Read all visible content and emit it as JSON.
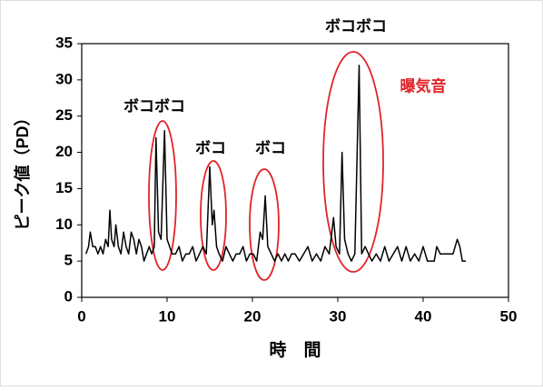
{
  "chart_data": {
    "type": "line",
    "xlabel": "時　間",
    "ylabel": "ピーク値（PD）",
    "annotations": [
      {
        "text": "ボコボコ",
        "color": "#000000"
      },
      {
        "text": "ボコ",
        "color": "#000000"
      },
      {
        "text": "ボコ",
        "color": "#000000"
      },
      {
        "text": "ボコボコ",
        "color": "#000000"
      },
      {
        "text": "曝気音",
        "color": "#e0242a"
      }
    ],
    "x": [
      0.5,
      0.8,
      1,
      1.3,
      1.6,
      1.9,
      2.2,
      2.5,
      2.8,
      3.1,
      3.3,
      3.5,
      3.8,
      4,
      4.3,
      4.6,
      4.9,
      5.2,
      5.5,
      5.8,
      6.1,
      6.4,
      6.7,
      7,
      7.3,
      7.6,
      7.9,
      8.2,
      8.5,
      8.7,
      9,
      9.3,
      9.7,
      10,
      10.3,
      10.6,
      11,
      11.4,
      11.8,
      12.2,
      12.6,
      13,
      13.4,
      13.8,
      14.2,
      14.6,
      15,
      15.3,
      15.5,
      15.8,
      16.1,
      16.5,
      16.9,
      17.3,
      17.7,
      18.1,
      18.5,
      18.9,
      19.3,
      19.7,
      20.1,
      20.5,
      20.9,
      21.2,
      21.5,
      21.8,
      22.2,
      22.6,
      23,
      23.4,
      23.8,
      24.2,
      24.6,
      25,
      25.5,
      26,
      26.5,
      27,
      27.5,
      28,
      28.5,
      29,
      29.5,
      29.8,
      30.2,
      30.5,
      30.8,
      31.2,
      31.6,
      32,
      32.5,
      32.8,
      33.2,
      33.6,
      34,
      34.5,
      35,
      35.5,
      36,
      36.5,
      37,
      37.5,
      38,
      38.5,
      39,
      39.5,
      40,
      40.5,
      41,
      41.3,
      41.6,
      42,
      42.5,
      43,
      43.5,
      44,
      44.3,
      44.6,
      45
    ],
    "series": [
      {
        "color": "#000000",
        "values": [
          6,
          7,
          9,
          7,
          7,
          6,
          7,
          6,
          8,
          7,
          12,
          8,
          7,
          10,
          7,
          6,
          9,
          7,
          6,
          9,
          8,
          6,
          8,
          7,
          5,
          6,
          7,
          6,
          7,
          22,
          9,
          8,
          23,
          8,
          7,
          6,
          6,
          7,
          5,
          6,
          6,
          7,
          5,
          6,
          7,
          6,
          18,
          10,
          12,
          7,
          6,
          5,
          7,
          6,
          5,
          6,
          6,
          7,
          5,
          6,
          6,
          5,
          9,
          8,
          14,
          7,
          6,
          5,
          6,
          5,
          6,
          5,
          6,
          6,
          5,
          6,
          7,
          5,
          6,
          5,
          7,
          6,
          11,
          7,
          6,
          20,
          8,
          6,
          5,
          6,
          32,
          6,
          7,
          6,
          5,
          6,
          5,
          7,
          5,
          6,
          7,
          5,
          7,
          5,
          6,
          5,
          7,
          5,
          5,
          5,
          7,
          6,
          6,
          6,
          6,
          8,
          7,
          5,
          5
        ]
      }
    ],
    "xlim": [
      0,
      50
    ],
    "xticks": [
      0,
      10,
      20,
      30,
      40,
      50
    ],
    "ylim": [
      0,
      35
    ],
    "yticks": [
      0,
      5,
      10,
      15,
      20,
      25,
      30,
      35
    ]
  }
}
